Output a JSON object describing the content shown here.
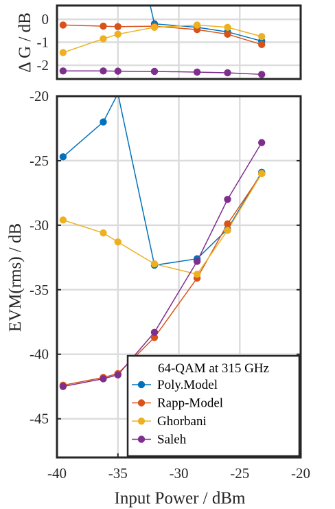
{
  "chart_data": [
    {
      "panel": "top",
      "type": "line",
      "ylabel": "Δ G / dB",
      "xlim": [
        -40,
        -20
      ],
      "ylim": [
        -2.6,
        0.6
      ],
      "yticks": [
        0,
        -1,
        -2
      ],
      "series": [
        {
          "name": "Poly.Model",
          "color": "#0072BD",
          "x": [
            -32,
            -28.5,
            -26,
            -23.2
          ],
          "y": [
            -0.2,
            -0.35,
            -0.55,
            -0.95
          ]
        },
        {
          "name": "Rapp-Model",
          "color": "#D95319",
          "x": [
            -39.5,
            -36.2,
            -35,
            -32,
            -28.5,
            -26,
            -23.2
          ],
          "y": [
            -0.25,
            -0.3,
            -0.32,
            -0.3,
            -0.45,
            -0.65,
            -1.1
          ]
        },
        {
          "name": "Ghorbani",
          "color": "#EDB120",
          "x": [
            -39.5,
            -36.2,
            -35,
            -32,
            -28.5,
            -26,
            -23.2
          ],
          "y": [
            -1.45,
            -0.85,
            -0.65,
            -0.35,
            -0.25,
            -0.35,
            -0.75
          ]
        },
        {
          "name": "Saleh",
          "color": "#7E2F8E",
          "x": [
            -39.5,
            -36.2,
            -35,
            -32,
            -28.5,
            -26,
            -23.2
          ],
          "y": [
            -2.25,
            -2.25,
            -2.26,
            -2.27,
            -2.3,
            -2.33,
            -2.4
          ]
        }
      ],
      "poly_offscale_segment": {
        "x": [
          -32.4,
          -32
        ],
        "y": [
          0.6,
          -0.2
        ]
      }
    },
    {
      "panel": "bottom",
      "type": "line",
      "xlabel": "Input Power / dBm",
      "ylabel": "EVM(rms) / dB",
      "xlim": [
        -40,
        -20
      ],
      "ylim": [
        -48,
        -20
      ],
      "xticks": [
        -40,
        -35,
        -30,
        -25,
        -20
      ],
      "yticks": [
        -20,
        -25,
        -30,
        -35,
        -40,
        -45
      ],
      "legend_title": "64-QAM at 315 GHz",
      "legend_position": "bottom-right",
      "grid": true,
      "series": [
        {
          "name": "Poly.Model",
          "color": "#0072BD",
          "x": [
            -39.5,
            -36.2,
            -35,
            -32,
            -28.5,
            -26,
            -23.2
          ],
          "y": [
            -24.7,
            -22,
            -19.8,
            -33.1,
            -32.6,
            -30.3,
            -25.9
          ],
          "offscale": [
            -35,
            -19.8
          ]
        },
        {
          "name": "Rapp-Model",
          "color": "#D95319",
          "x": [
            -39.5,
            -36.2,
            -35,
            -32,
            -28.5,
            -26,
            -23.2
          ],
          "y": [
            -42.4,
            -41.8,
            -41.5,
            -38.7,
            -34.1,
            -29.9,
            -26.0
          ]
        },
        {
          "name": "Ghorbani",
          "color": "#EDB120",
          "x": [
            -39.5,
            -36.2,
            -35,
            -32,
            -28.5,
            -26,
            -23.2
          ],
          "y": [
            -29.6,
            -30.6,
            -31.3,
            -33.0,
            -33.8,
            -30.4,
            -26.0
          ]
        },
        {
          "name": "Saleh",
          "color": "#7E2F8E",
          "x": [
            -39.5,
            -36.2,
            -35,
            -32,
            -28.5,
            -26,
            -23.2
          ],
          "y": [
            -42.5,
            -41.9,
            -41.6,
            -38.3,
            -32.8,
            -28.0,
            -23.6
          ]
        }
      ]
    }
  ],
  "top_yticklabels": [
    "0",
    "-1",
    "-2"
  ],
  "bottom_yticklabels": [
    "-20",
    "-25",
    "-30",
    "-35",
    "-40",
    "-45"
  ],
  "bottom_xticklabels": [
    "-40",
    "-35",
    "-30",
    "-25",
    "-20"
  ],
  "labels": {
    "top_ylabel": "Δ G / dB",
    "bottom_ylabel": "EVM(rms) / dB",
    "xlabel": "Input Power / dBm",
    "legend_title": "64-QAM at 315 GHz",
    "legend_entries": [
      "Poly.Model",
      "Rapp-Model",
      "Ghorbani",
      "Saleh"
    ]
  }
}
